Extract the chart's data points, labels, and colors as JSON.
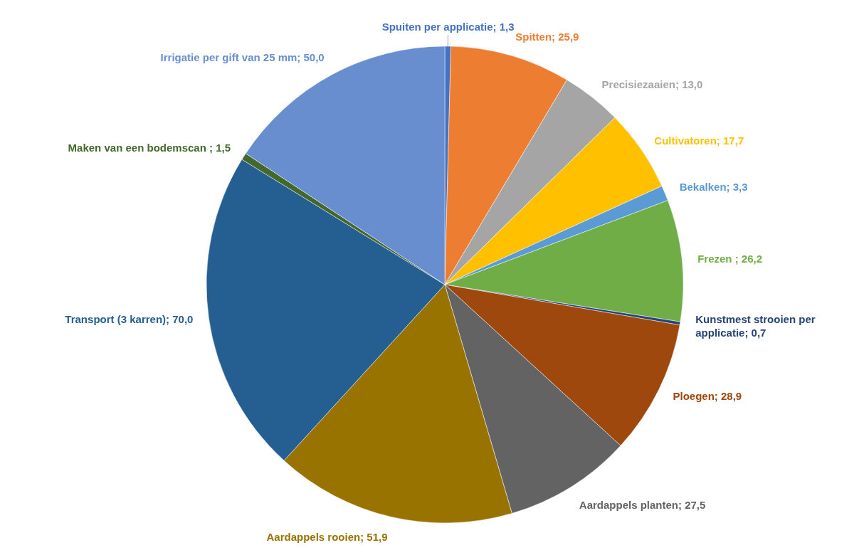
{
  "chart_data": {
    "type": "pie",
    "categories": [
      "Spuiten per applicatie",
      "Spitten",
      "Precisiezaaien",
      "Cultivatoren",
      "Bekalken",
      "Frezen ",
      "Kunstmest strooien per applicatie",
      "Ploegen",
      "Aardappels planten",
      "Aardappels rooien",
      "Transport (3 karren)",
      "Maken van een bodemscan ",
      "Irrigatie per gift van 25 mm"
    ],
    "values": [
      1.3,
      25.9,
      13.0,
      17.7,
      3.3,
      26.2,
      0.7,
      28.9,
      27.5,
      51.9,
      70.0,
      1.5,
      50.0
    ],
    "value_labels": [
      "1,3",
      "25,9",
      "13,0",
      "17,7",
      "3,3",
      "26,2",
      "0,7",
      "28,9",
      "27,5",
      "51,9",
      "70,0",
      "1,5",
      "50,0"
    ],
    "colors": [
      "#4472c4",
      "#ed7d31",
      "#a5a5a5",
      "#ffc000",
      "#5b9bd5",
      "#70ad47",
      "#264478",
      "#9e480e",
      "#636363",
      "#997300",
      "#255e91",
      "#43682b",
      "#698ed0"
    ]
  }
}
